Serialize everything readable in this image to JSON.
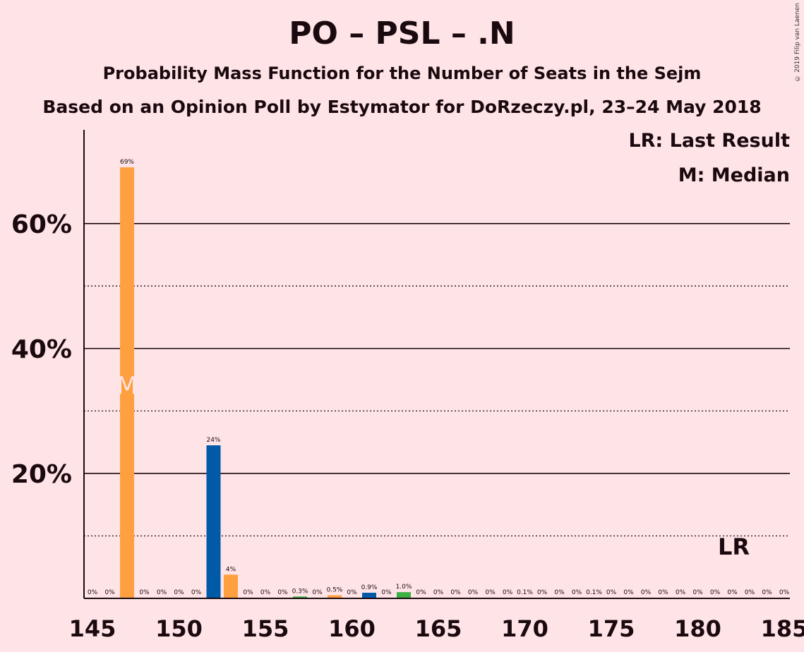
{
  "title": "PO – PSL – .N",
  "subtitle": "Probability Mass Function for the Number of Seats in the Sejm",
  "subtitle2": "Based on an Opinion Poll by Estymator for DoRzeczy.pl, 23–24 May 2018",
  "copyright": "© 2019 Filip van Laenen",
  "legend": {
    "last_result": "LR: Last Result",
    "median": "M: Median"
  },
  "markers": {
    "median_label": "M",
    "median_seat": 147,
    "last_result_label": "LR",
    "last_result_seat": 182
  },
  "colors": {
    "orange": "#ffa040",
    "blue": "#005aa8",
    "green": "#3cb043",
    "background": "#ffe4e7",
    "axis": "#1a0a0f"
  },
  "chart_data": {
    "type": "bar",
    "x": [
      145,
      146,
      147,
      148,
      149,
      150,
      151,
      152,
      153,
      154,
      155,
      156,
      157,
      158,
      159,
      160,
      161,
      162,
      163,
      164,
      165,
      166,
      167,
      168,
      169,
      170,
      171,
      172,
      173,
      174,
      175,
      176,
      177,
      178,
      179,
      180,
      181,
      182,
      183,
      184,
      185
    ],
    "values": [
      0,
      0,
      69,
      0,
      0,
      0,
      0,
      24.5,
      3.8,
      0,
      0,
      0,
      0.3,
      0,
      0.5,
      0,
      0.9,
      0,
      1.0,
      0,
      0,
      0,
      0,
      0,
      0,
      0.1,
      0,
      0,
      0,
      0.1,
      0,
      0,
      0,
      0,
      0,
      0,
      0,
      0,
      0,
      0,
      0
    ],
    "labels": [
      "0%",
      "0%",
      "69%",
      "0%",
      "0%",
      "0%",
      "0%",
      "24%",
      "4%",
      "0%",
      "0%",
      "0%",
      "0.3%",
      "0%",
      "0.5%",
      "0%",
      "0.9%",
      "0%",
      "1.0%",
      "0%",
      "0%",
      "0%",
      "0%",
      "0%",
      "0%",
      "0.1%",
      "0%",
      "0%",
      "0%",
      "0.1%",
      "0%",
      "0%",
      "0%",
      "0%",
      "0%",
      "0%",
      "0%",
      "0%",
      "0%",
      "0%",
      "0%"
    ],
    "bar_colors": [
      "orange",
      "orange",
      "orange",
      "orange",
      "orange",
      "orange",
      "orange",
      "blue",
      "orange",
      "orange",
      "orange",
      "orange",
      "green",
      "orange",
      "orange",
      "orange",
      "blue",
      "orange",
      "green",
      "orange",
      "orange",
      "orange",
      "orange",
      "orange",
      "orange",
      "orange",
      "orange",
      "orange",
      "orange",
      "orange",
      "orange",
      "orange",
      "orange",
      "orange",
      "orange",
      "orange",
      "orange",
      "orange",
      "orange",
      "orange",
      "orange"
    ],
    "xticks": [
      145,
      150,
      155,
      160,
      165,
      170,
      175,
      180,
      185
    ],
    "xtick_labels": [
      "145",
      "150",
      "155",
      "160",
      "165",
      "170",
      "175",
      "180",
      "185"
    ],
    "yticks_major": [
      20,
      40,
      60
    ],
    "ytick_labels": [
      "20%",
      "40%",
      "60%"
    ],
    "yticks_minor": [
      10,
      30,
      50
    ],
    "ylim": [
      0,
      75
    ],
    "xlim": [
      144.5,
      185.5
    ]
  }
}
